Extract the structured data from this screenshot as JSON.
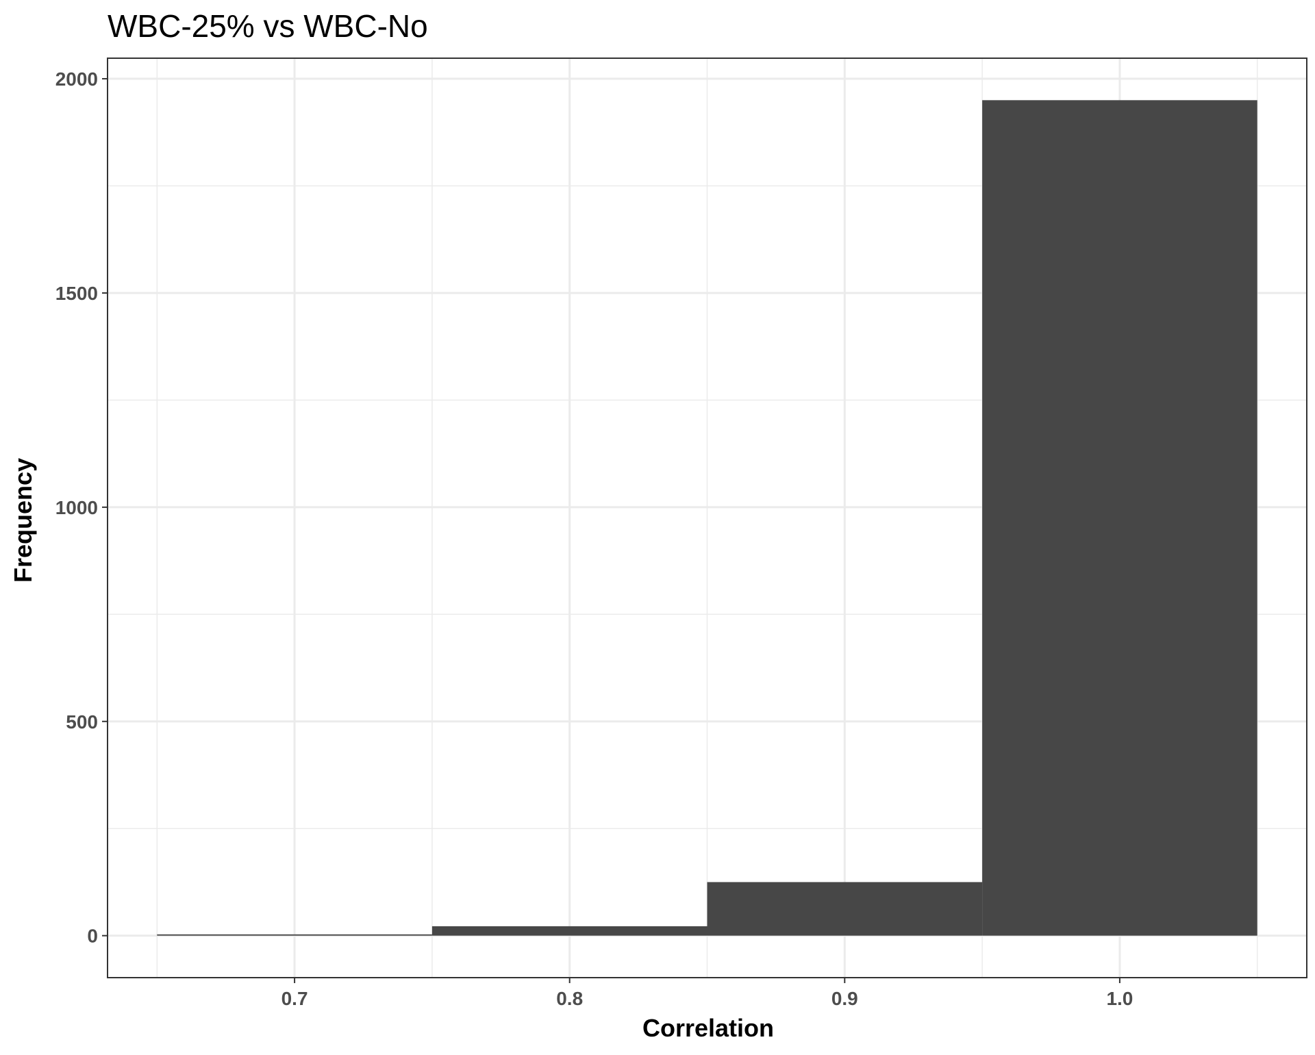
{
  "chart_data": {
    "type": "bar",
    "title": "WBC-25% vs WBC-No",
    "xlabel": "Correlation",
    "ylabel": "Frequency",
    "bins": [
      {
        "x0": 0.65,
        "x1": 0.75,
        "count": 3
      },
      {
        "x0": 0.75,
        "x1": 0.85,
        "count": 22
      },
      {
        "x0": 0.85,
        "x1": 0.95,
        "count": 125
      },
      {
        "x0": 0.95,
        "x1": 1.05,
        "count": 1950
      }
    ],
    "xlim": [
      0.632,
      1.068
    ],
    "ylim": [
      -98,
      2048
    ],
    "x_ticks": [
      0.7,
      0.8,
      0.9,
      1.0
    ],
    "x_tick_labels": [
      "0.7",
      "0.8",
      "0.9",
      "1.0"
    ],
    "y_ticks": [
      0,
      500,
      1000,
      1500,
      2000
    ],
    "y_tick_labels": [
      "0",
      "500",
      "1000",
      "1500",
      "2000"
    ],
    "grid": true,
    "colors": {
      "bar": "#474747",
      "grid": "#ebebeb",
      "panel_border": "#333333",
      "tick_text": "#4d4d4d"
    }
  }
}
